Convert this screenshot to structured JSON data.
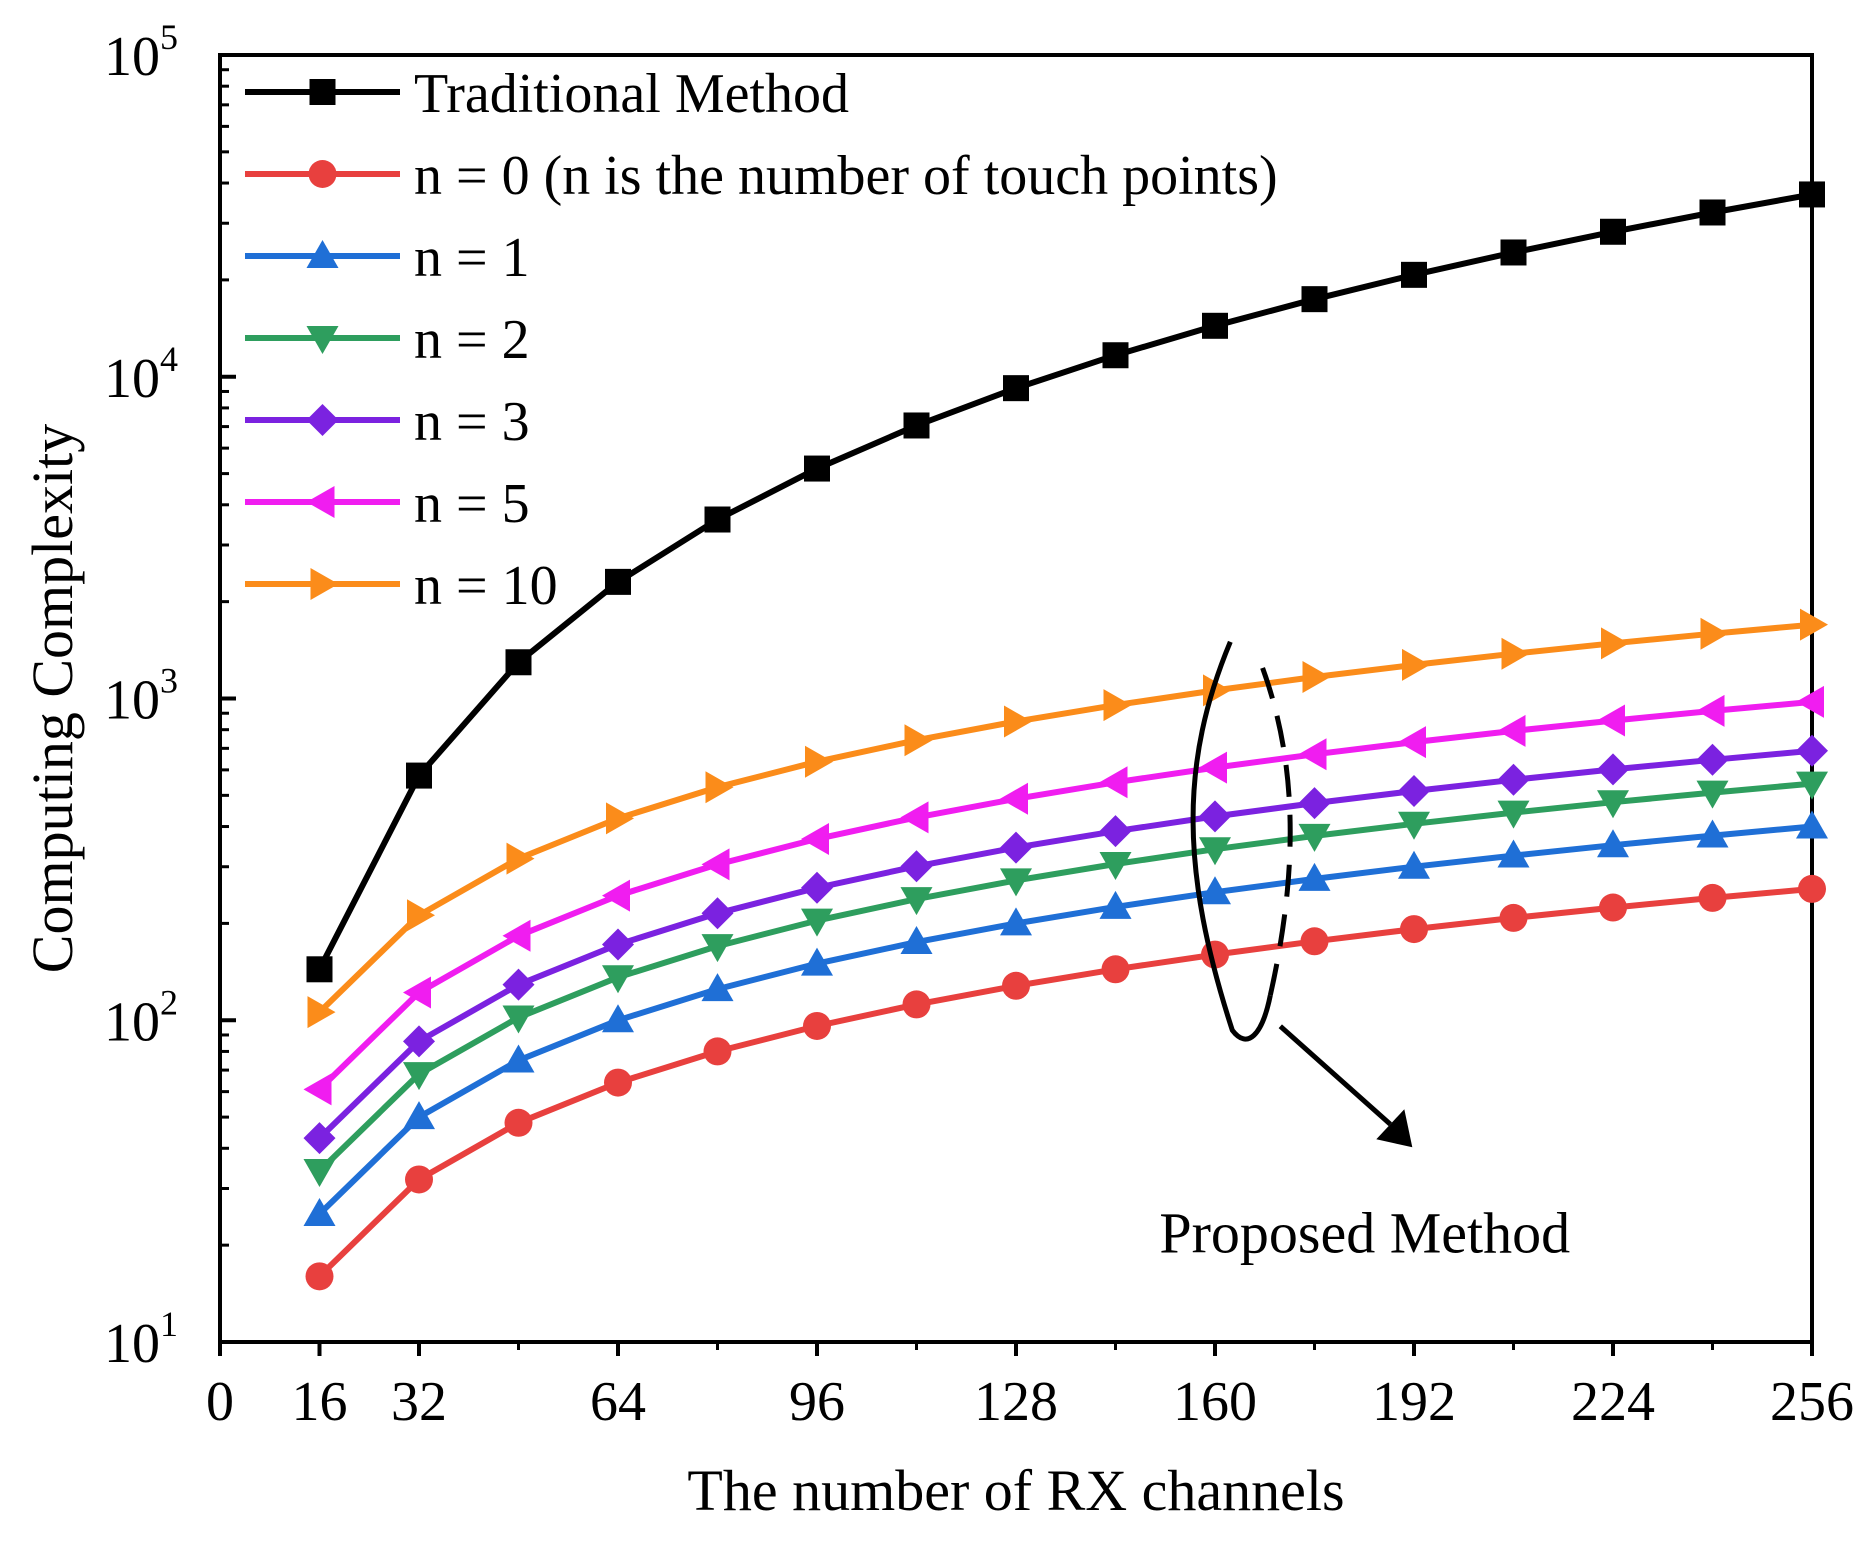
{
  "chart_data": {
    "type": "line",
    "title": "",
    "xlabel": "The number of RX channels",
    "ylabel": "Computing Complexity",
    "xlim": [
      0,
      256
    ],
    "ylim": [
      10,
      100000
    ],
    "yscale": "log",
    "grid": false,
    "legend_position": "top-left",
    "xticks": [
      0,
      16,
      32,
      64,
      96,
      128,
      160,
      192,
      224,
      256
    ],
    "xtick_labels": [
      "0",
      "16",
      "32",
      "64",
      "96",
      "128",
      "160",
      "192",
      "224",
      "256"
    ],
    "yticks": [
      {
        "value": 10,
        "base": "10",
        "exp": "1"
      },
      {
        "value": 100,
        "base": "10",
        "exp": "2"
      },
      {
        "value": 1000,
        "base": "10",
        "exp": "3"
      },
      {
        "value": 10000,
        "base": "10",
        "exp": "4"
      },
      {
        "value": 100000,
        "base": "10",
        "exp": "5"
      }
    ],
    "x": [
      16,
      32,
      48,
      64,
      80,
      96,
      112,
      128,
      144,
      160,
      176,
      192,
      208,
      224,
      240,
      256
    ],
    "series": [
      {
        "name": "Traditional Method",
        "color": "#000000",
        "marker": "square",
        "values": [
          144,
          576,
          1296,
          2304,
          3600,
          5184,
          7056,
          9216,
          11664,
          14400,
          17424,
          20736,
          24336,
          28224,
          32400,
          36864
        ]
      },
      {
        "name": "n = 0 (n is the number of touch points)",
        "color": "#e8403e",
        "marker": "circle",
        "values": [
          16,
          32,
          48,
          64,
          80,
          96,
          112,
          128,
          144,
          160,
          176,
          192,
          208,
          224,
          240,
          256
        ]
      },
      {
        "name": "n = 1",
        "color": "#1f6fd6",
        "marker": "triangle-up",
        "values": [
          25,
          50,
          75,
          100,
          125,
          150,
          175,
          200,
          225,
          250,
          275,
          300,
          325,
          350,
          375,
          400
        ]
      },
      {
        "name": "n = 2",
        "color": "#2e9e5e",
        "marker": "triangle-down",
        "values": [
          34,
          68,
          102,
          136,
          170,
          204,
          238,
          272,
          306,
          340,
          374,
          408,
          442,
          476,
          510,
          544
        ]
      },
      {
        "name": "n = 3",
        "color": "#7b22e0",
        "marker": "diamond",
        "values": [
          43,
          86,
          129,
          172,
          215,
          258,
          301,
          344,
          387,
          430,
          473,
          516,
          559,
          602,
          645,
          688
        ]
      },
      {
        "name": "n = 5",
        "color": "#f01df0",
        "marker": "triangle-left",
        "values": [
          61,
          122,
          183,
          244,
          305,
          366,
          427,
          488,
          549,
          610,
          671,
          732,
          793,
          854,
          915,
          976
        ]
      },
      {
        "name": "n = 10",
        "color": "#fb8c1a",
        "marker": "triangle-right",
        "values": [
          106,
          212,
          318,
          424,
          530,
          636,
          742,
          848,
          954,
          1060,
          1166,
          1272,
          1378,
          1484,
          1590,
          1696
        ]
      }
    ],
    "annotation": {
      "text": "Proposed Method"
    }
  }
}
